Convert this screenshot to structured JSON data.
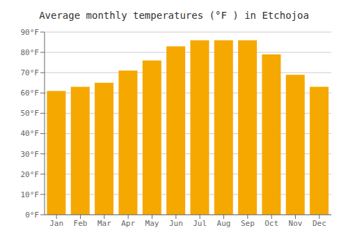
{
  "chart_data": {
    "type": "bar",
    "title": "Average monthly temperatures (°F ) in Etchojoa",
    "categories": [
      "Jan",
      "Feb",
      "Mar",
      "Apr",
      "May",
      "Jun",
      "Jul",
      "Aug",
      "Sep",
      "Oct",
      "Nov",
      "Dec"
    ],
    "values": [
      61,
      63,
      65,
      71,
      76,
      83,
      86,
      86,
      86,
      79,
      69,
      63
    ],
    "color": "#F5A800",
    "ylim": [
      0,
      90
    ],
    "yticks": [
      {
        "value": 0,
        "label": "0°F"
      },
      {
        "value": 10,
        "label": "10°F"
      },
      {
        "value": 20,
        "label": "20°F"
      },
      {
        "value": 30,
        "label": "30°F"
      },
      {
        "value": 40,
        "label": "40°F"
      },
      {
        "value": 50,
        "label": "50°F"
      },
      {
        "value": 60,
        "label": "60°F"
      },
      {
        "value": 70,
        "label": "70°F"
      },
      {
        "value": 80,
        "label": "80°F"
      },
      {
        "value": 90,
        "label": "90°F"
      }
    ],
    "grid": true
  }
}
